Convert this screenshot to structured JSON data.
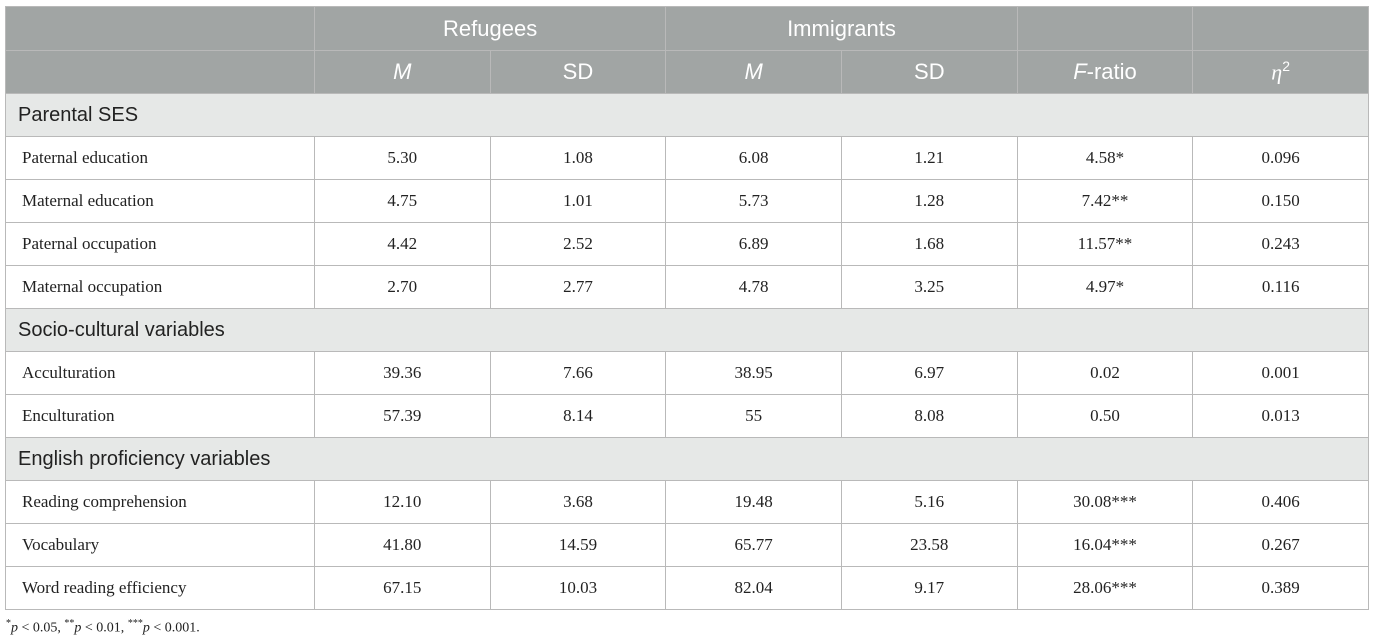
{
  "header": {
    "group_refugees": "Refugees",
    "group_immigrants": "Immigrants",
    "m1": "M",
    "sd1": "SD",
    "m2": "M",
    "sd2": "SD",
    "f_letter": "F",
    "f_suffix": "-ratio",
    "eta": "η",
    "eta_sup": "2"
  },
  "sections": [
    {
      "title": "Parental SES",
      "rows": [
        {
          "label": "Paternal education",
          "rm": "5.30",
          "rsd": "1.08",
          "im": "6.08",
          "isd": "1.21",
          "f": "4.58*",
          "eta": "0.096"
        },
        {
          "label": "Maternal education",
          "rm": "4.75",
          "rsd": "1.01",
          "im": "5.73",
          "isd": "1.28",
          "f": "7.42**",
          "eta": "0.150"
        },
        {
          "label": "Paternal occupation",
          "rm": "4.42",
          "rsd": "2.52",
          "im": "6.89",
          "isd": "1.68",
          "f": "11.57**",
          "eta": "0.243"
        },
        {
          "label": "Maternal occupation",
          "rm": "2.70",
          "rsd": "2.77",
          "im": "4.78",
          "isd": "3.25",
          "f": "4.97*",
          "eta": "0.116"
        }
      ]
    },
    {
      "title": "Socio-cultural variables",
      "rows": [
        {
          "label": "Acculturation",
          "rm": "39.36",
          "rsd": "7.66",
          "im": "38.95",
          "isd": "6.97",
          "f": "0.02",
          "eta": "0.001"
        },
        {
          "label": "Enculturation",
          "rm": "57.39",
          "rsd": "8.14",
          "im": "55",
          "isd": "8.08",
          "f": "0.50",
          "eta": "0.013"
        }
      ]
    },
    {
      "title": "English proficiency variables",
      "rows": [
        {
          "label": "Reading comprehension",
          "rm": "12.10",
          "rsd": "3.68",
          "im": "19.48",
          "isd": "5.16",
          "f": "30.08***",
          "eta": "0.406"
        },
        {
          "label": "Vocabulary",
          "rm": "41.80",
          "rsd": "14.59",
          "im": "65.77",
          "isd": "23.58",
          "f": "16.04***",
          "eta": "0.267"
        },
        {
          "label": "Word reading efficiency",
          "rm": "67.15",
          "rsd": "10.03",
          "im": "82.04",
          "isd": "9.17",
          "f": "28.06***",
          "eta": "0.389"
        }
      ]
    }
  ],
  "footnote": {
    "s1": "*",
    "p1": "p",
    "t1": " < 0.05, ",
    "s2": "**",
    "p2": "p",
    "t2": " < 0.01, ",
    "s3": "***",
    "p3": "p",
    "t3": " < 0.001."
  }
}
